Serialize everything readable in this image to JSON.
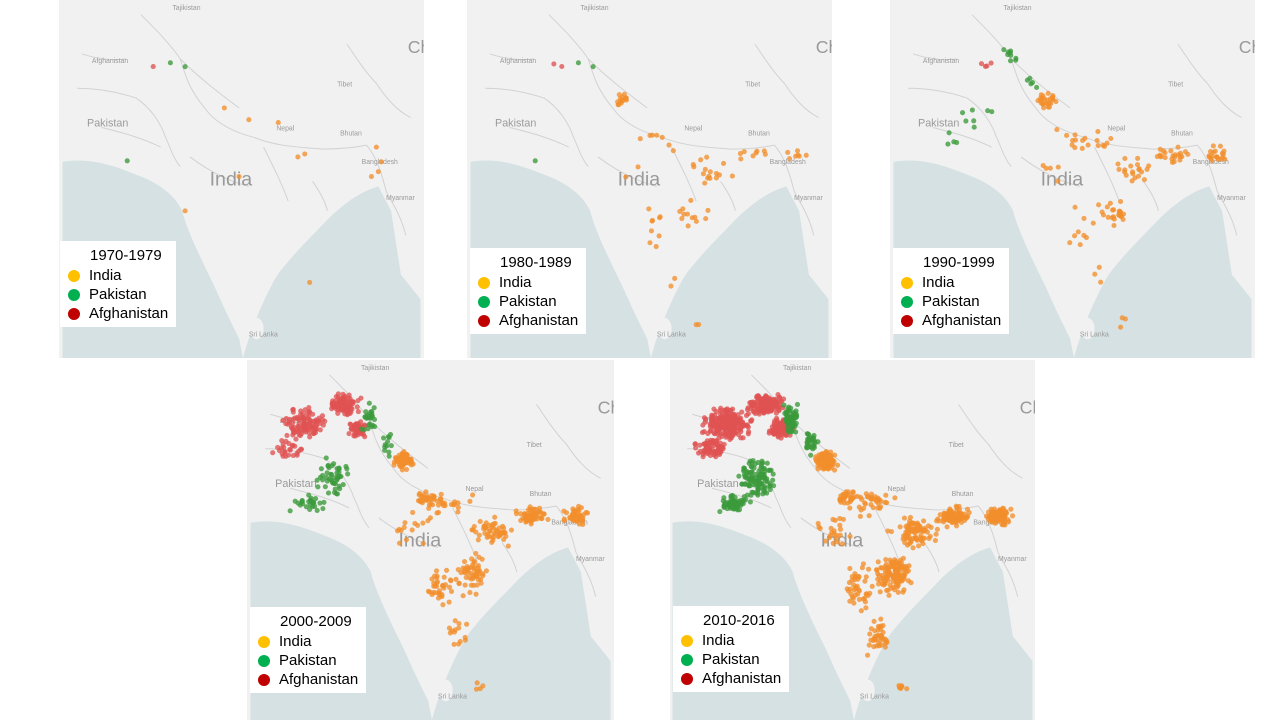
{
  "colors": {
    "india": "#f28e2b",
    "pakistan": "#3b9a3b",
    "afghanistan": "#e05252",
    "legend_india": "#ffc000",
    "legend_pakistan": "#00b050",
    "legend_afghanistan": "#c00000",
    "land": "#f1f1f1",
    "sea": "#d6e1e3",
    "border": "#d2d2d2"
  },
  "map_labels": {
    "tajikistan": "Tajikistan",
    "afghanistan": "Afghanistan",
    "pakistan": "Pakistan",
    "tibet": "Tibet",
    "nepal": "Nepal",
    "bhutan": "Bhutan",
    "india": "India",
    "bangladesh": "Bangladesh",
    "myanmar": "Myanmar",
    "sri_lanka": "Sri Lanka",
    "china": "Ch"
  },
  "legend_entries": {
    "india": "India",
    "pakistan": "Pakistan",
    "afghanistan": "Afghanistan"
  },
  "panels": [
    {
      "period": "1970-1979",
      "point_counts": {
        "india": 12,
        "pakistan": 3,
        "afghanistan": 1
      }
    },
    {
      "period": "1980-1989",
      "point_counts": {
        "india": 80,
        "pakistan": 3,
        "afghanistan": 2
      }
    },
    {
      "period": "1990-1999",
      "point_counts": {
        "india": 150,
        "pakistan": 25,
        "afghanistan": 4
      }
    },
    {
      "period": "2000-2009",
      "point_counts": {
        "india": 400,
        "pakistan": 110,
        "afghanistan": 260
      }
    },
    {
      "period": "2010-2016",
      "point_counts": {
        "india": 700,
        "pakistan": 260,
        "afghanistan": 600
      }
    }
  ]
}
